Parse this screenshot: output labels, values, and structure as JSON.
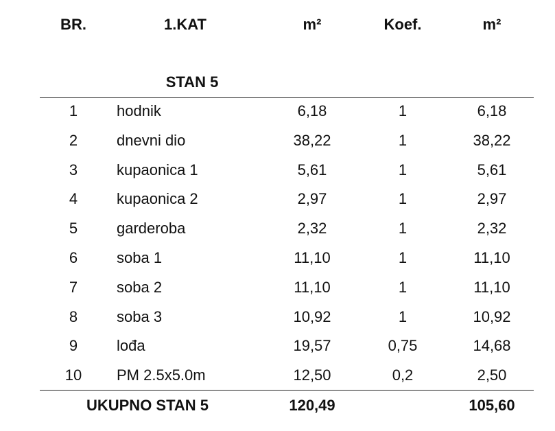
{
  "table": {
    "header": [
      "BR.",
      "1.KAT",
      "m²",
      "Koef.",
      "m²"
    ],
    "section": "STAN 5",
    "rows": [
      [
        "1",
        "hodnik",
        "6,18",
        "1",
        "6,18"
      ],
      [
        "2",
        "dnevni dio",
        "38,22",
        "1",
        "38,22"
      ],
      [
        "3",
        "kupaonica 1",
        "5,61",
        "1",
        "5,61"
      ],
      [
        "4",
        "kupaonica 2",
        "2,97",
        "1",
        "2,97"
      ],
      [
        "5",
        "garderoba",
        "2,32",
        "1",
        "2,32"
      ],
      [
        "6",
        "soba 1",
        "11,10",
        "1",
        "11,10"
      ],
      [
        "7",
        "soba 2",
        "11,10",
        "1",
        "11,10"
      ],
      [
        "8",
        "soba 3",
        "10,92",
        "1",
        "10,92"
      ],
      [
        "9",
        "lođa",
        "19,57",
        "0,75",
        "14,68"
      ],
      [
        "10",
        "PM 2.5x5.0m",
        "12,50",
        "0,2",
        "2,50"
      ]
    ],
    "total": {
      "label": "UKUPNO STAN 5",
      "area": "120,49",
      "net": "105,60"
    }
  }
}
